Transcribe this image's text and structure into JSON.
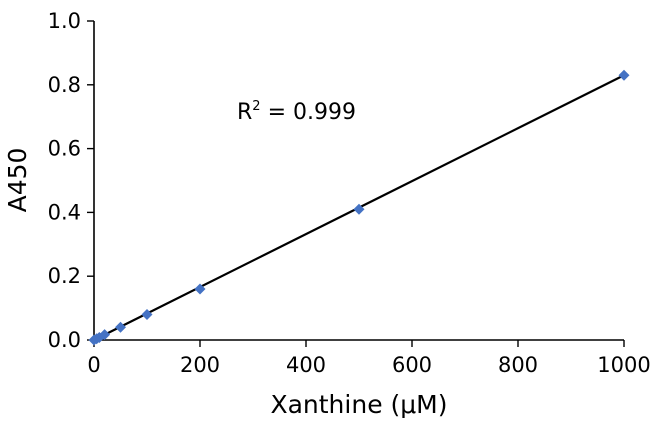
{
  "chart_data": {
    "type": "scatter",
    "xlabel": "Xanthine  (μM)",
    "ylabel": "A450",
    "xlim": [
      0,
      1000
    ],
    "ylim": [
      0.0,
      1.0
    ],
    "x_ticks": [
      0,
      200,
      400,
      600,
      800,
      1000
    ],
    "x_tick_labels": [
      "0",
      "200",
      "400",
      "600",
      "800",
      "1000"
    ],
    "y_ticks": [
      0.0,
      0.2,
      0.4,
      0.6,
      0.8,
      1.0
    ],
    "y_tick_labels": [
      "0.0",
      "0.2",
      "0.4",
      "0.6",
      "0.8",
      "1.0"
    ],
    "grid": false,
    "series": [
      {
        "marker": "diamond",
        "color": "#4472C4",
        "x": [
          0,
          5,
          10,
          20,
          50,
          100,
          200,
          500,
          1000
        ],
        "y": [
          0.0,
          0.004,
          0.008,
          0.017,
          0.04,
          0.08,
          0.16,
          0.41,
          0.83
        ]
      }
    ],
    "trendline": {
      "type": "linear",
      "color": "#000000",
      "x": [
        0,
        1000
      ],
      "y": [
        0.0,
        0.83
      ]
    },
    "annotation": {
      "base": "R",
      "superscript": "2",
      "suffix": " = 0.999"
    }
  }
}
